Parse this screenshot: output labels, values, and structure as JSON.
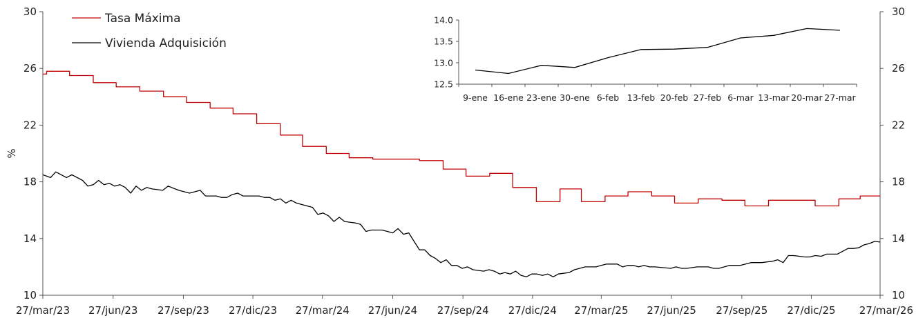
{
  "chart_data": [
    {
      "type": "line",
      "title": "",
      "xlabel": "",
      "ylabel": "%",
      "ylim": [
        10,
        30
      ],
      "y_ticks": [
        10,
        14,
        18,
        22,
        26,
        30
      ],
      "secondary_y_ticks": [
        10,
        14,
        18,
        22,
        26,
        30
      ],
      "x_range": [
        "2023-03-27",
        "2026-03-27"
      ],
      "x_ticks": [
        {
          "date": "2023-03-27",
          "label": "27/mar/23"
        },
        {
          "date": "2023-06-27",
          "label": "27/jun/23"
        },
        {
          "date": "2023-09-27",
          "label": "27/sep/23"
        },
        {
          "date": "2023-12-27",
          "label": "27/dic/23"
        },
        {
          "date": "2024-03-27",
          "label": "27/mar/24"
        },
        {
          "date": "2024-06-27",
          "label": "27/jun/24"
        },
        {
          "date": "2024-09-27",
          "label": "27/sep/24"
        },
        {
          "date": "2024-12-27",
          "label": "27/dic/24"
        },
        {
          "date": "2025-03-27",
          "label": "27/mar/25"
        },
        {
          "date": "2025-06-27",
          "label": "27/jun/25"
        },
        {
          "date": "2025-09-27",
          "label": "27/sep/25"
        },
        {
          "date": "2025-12-27",
          "label": "27/dic/25"
        },
        {
          "date": "2026-03-27",
          "label": "27/mar/26"
        }
      ],
      "legend_position": "top-left",
      "grid": false,
      "series": [
        {
          "name": "Tasa Máxima",
          "color": "#c00000",
          "shape": "step",
          "points": [
            [
              "2023-03-27",
              25.6
            ],
            [
              "2023-04-01",
              25.8
            ],
            [
              "2023-05-01",
              25.5
            ],
            [
              "2023-06-01",
              25.0
            ],
            [
              "2023-07-01",
              24.7
            ],
            [
              "2023-08-01",
              24.4
            ],
            [
              "2023-09-01",
              24.0
            ],
            [
              "2023-10-01",
              23.6
            ],
            [
              "2023-11-01",
              23.2
            ],
            [
              "2023-12-01",
              22.8
            ],
            [
              "2024-01-01",
              22.1
            ],
            [
              "2024-02-01",
              21.3
            ],
            [
              "2024-03-01",
              20.5
            ],
            [
              "2024-04-01",
              20.0
            ],
            [
              "2024-05-01",
              19.7
            ],
            [
              "2024-06-01",
              19.6
            ],
            [
              "2024-08-01",
              19.5
            ],
            [
              "2024-09-01",
              18.9
            ],
            [
              "2024-10-01",
              18.4
            ],
            [
              "2024-11-01",
              18.6
            ],
            [
              "2024-12-01",
              17.6
            ],
            [
              "2025-01-01",
              16.6
            ],
            [
              "2025-02-01",
              17.5
            ],
            [
              "2025-03-01",
              16.6
            ],
            [
              "2025-04-01",
              17.0
            ],
            [
              "2025-05-01",
              17.3
            ],
            [
              "2025-06-01",
              17.0
            ],
            [
              "2025-07-01",
              16.5
            ],
            [
              "2025-08-01",
              16.8
            ],
            [
              "2025-09-01",
              16.7
            ],
            [
              "2025-10-01",
              16.3
            ],
            [
              "2025-11-01",
              16.7
            ],
            [
              "2025-12-01",
              16.7
            ],
            [
              "2026-01-01",
              16.3
            ],
            [
              "2026-02-01",
              16.8
            ],
            [
              "2026-03-01",
              17.0
            ],
            [
              "2026-03-27",
              17.0
            ]
          ]
        },
        {
          "name": "Vivienda Adquisición",
          "color": "#000000",
          "shape": "line",
          "points": [
            [
              "2023-03-27",
              18.5
            ],
            [
              "2023-04-06",
              18.3
            ],
            [
              "2023-04-13",
              18.7
            ],
            [
              "2023-04-27",
              18.3
            ],
            [
              "2023-05-04",
              18.5
            ],
            [
              "2023-05-18",
              18.1
            ],
            [
              "2023-05-25",
              17.7
            ],
            [
              "2023-06-01",
              17.8
            ],
            [
              "2023-06-08",
              18.1
            ],
            [
              "2023-06-15",
              17.8
            ],
            [
              "2023-06-22",
              17.9
            ],
            [
              "2023-06-29",
              17.7
            ],
            [
              "2023-07-06",
              17.8
            ],
            [
              "2023-07-13",
              17.6
            ],
            [
              "2023-07-20",
              17.2
            ],
            [
              "2023-07-27",
              17.7
            ],
            [
              "2023-08-03",
              17.4
            ],
            [
              "2023-08-10",
              17.6
            ],
            [
              "2023-08-17",
              17.5
            ],
            [
              "2023-08-31",
              17.4
            ],
            [
              "2023-09-07",
              17.7
            ],
            [
              "2023-09-21",
              17.4
            ],
            [
              "2023-10-05",
              17.2
            ],
            [
              "2023-10-19",
              17.4
            ],
            [
              "2023-10-26",
              17.0
            ],
            [
              "2023-11-09",
              17.0
            ],
            [
              "2023-11-16",
              16.9
            ],
            [
              "2023-11-23",
              16.9
            ],
            [
              "2023-11-30",
              17.1
            ],
            [
              "2023-12-07",
              17.2
            ],
            [
              "2023-12-14",
              17.0
            ],
            [
              "2023-12-28",
              17.0
            ],
            [
              "2024-01-04",
              17.0
            ],
            [
              "2024-01-11",
              16.9
            ],
            [
              "2024-01-18",
              16.9
            ],
            [
              "2024-01-25",
              16.7
            ],
            [
              "2024-02-01",
              16.8
            ],
            [
              "2024-02-08",
              16.5
            ],
            [
              "2024-02-15",
              16.7
            ],
            [
              "2024-02-22",
              16.5
            ],
            [
              "2024-02-29",
              16.4
            ],
            [
              "2024-03-14",
              16.2
            ],
            [
              "2024-03-21",
              15.7
            ],
            [
              "2024-03-28",
              15.8
            ],
            [
              "2024-04-04",
              15.6
            ],
            [
              "2024-04-11",
              15.2
            ],
            [
              "2024-04-18",
              15.5
            ],
            [
              "2024-04-25",
              15.2
            ],
            [
              "2024-05-09",
              15.1
            ],
            [
              "2024-05-16",
              15.0
            ],
            [
              "2024-05-23",
              14.5
            ],
            [
              "2024-05-30",
              14.6
            ],
            [
              "2024-06-13",
              14.6
            ],
            [
              "2024-06-20",
              14.5
            ],
            [
              "2024-06-27",
              14.4
            ],
            [
              "2024-07-04",
              14.7
            ],
            [
              "2024-07-11",
              14.3
            ],
            [
              "2024-07-18",
              14.4
            ],
            [
              "2024-07-25",
              13.8
            ],
            [
              "2024-08-01",
              13.2
            ],
            [
              "2024-08-08",
              13.2
            ],
            [
              "2024-08-15",
              12.8
            ],
            [
              "2024-08-22",
              12.6
            ],
            [
              "2024-08-29",
              12.3
            ],
            [
              "2024-09-05",
              12.5
            ],
            [
              "2024-09-12",
              12.1
            ],
            [
              "2024-09-19",
              12.1
            ],
            [
              "2024-09-26",
              11.9
            ],
            [
              "2024-10-03",
              12.0
            ],
            [
              "2024-10-10",
              11.8
            ],
            [
              "2024-10-24",
              11.7
            ],
            [
              "2024-10-31",
              11.8
            ],
            [
              "2024-11-07",
              11.7
            ],
            [
              "2024-11-14",
              11.5
            ],
            [
              "2024-11-21",
              11.6
            ],
            [
              "2024-11-28",
              11.5
            ],
            [
              "2024-12-05",
              11.7
            ],
            [
              "2024-12-12",
              11.4
            ],
            [
              "2024-12-19",
              11.3
            ],
            [
              "2024-12-26",
              11.5
            ],
            [
              "2025-01-02",
              11.5
            ],
            [
              "2025-01-09",
              11.4
            ],
            [
              "2025-01-16",
              11.5
            ],
            [
              "2025-01-23",
              11.3
            ],
            [
              "2025-01-30",
              11.5
            ],
            [
              "2025-02-13",
              11.6
            ],
            [
              "2025-02-20",
              11.8
            ],
            [
              "2025-03-06",
              12.0
            ],
            [
              "2025-03-20",
              12.0
            ],
            [
              "2025-03-27",
              12.1
            ],
            [
              "2025-04-03",
              12.2
            ],
            [
              "2025-04-17",
              12.2
            ],
            [
              "2025-04-24",
              12.0
            ],
            [
              "2025-05-01",
              12.1
            ],
            [
              "2025-05-08",
              12.1
            ],
            [
              "2025-05-15",
              12.0
            ],
            [
              "2025-05-22",
              12.1
            ],
            [
              "2025-05-29",
              12.0
            ],
            [
              "2025-06-05",
              12.0
            ],
            [
              "2025-06-26",
              11.9
            ],
            [
              "2025-07-03",
              12.0
            ],
            [
              "2025-07-10",
              11.9
            ],
            [
              "2025-07-17",
              11.9
            ],
            [
              "2025-07-31",
              12.0
            ],
            [
              "2025-08-14",
              12.0
            ],
            [
              "2025-08-21",
              11.9
            ],
            [
              "2025-08-28",
              11.9
            ],
            [
              "2025-09-04",
              12.0
            ],
            [
              "2025-09-11",
              12.1
            ],
            [
              "2025-09-25",
              12.1
            ],
            [
              "2025-10-02",
              12.2
            ],
            [
              "2025-10-09",
              12.3
            ],
            [
              "2025-10-23",
              12.3
            ],
            [
              "2025-11-06",
              12.4
            ],
            [
              "2025-11-13",
              12.5
            ],
            [
              "2025-11-20",
              12.3
            ],
            [
              "2025-11-27",
              12.8
            ],
            [
              "2025-12-04",
              12.8
            ],
            [
              "2025-12-18",
              12.7
            ],
            [
              "2025-12-25",
              12.7
            ],
            [
              "2026-01-01",
              12.8
            ],
            [
              "2026-01-09",
              12.75
            ],
            [
              "2026-01-16",
              12.9
            ],
            [
              "2026-01-23",
              12.9
            ],
            [
              "2026-01-30",
              12.9
            ],
            [
              "2026-02-06",
              13.1
            ],
            [
              "2026-02-13",
              13.3
            ],
            [
              "2026-02-20",
              13.3
            ],
            [
              "2026-02-27",
              13.35
            ],
            [
              "2026-03-06",
              13.55
            ],
            [
              "2026-03-13",
              13.65
            ],
            [
              "2026-03-20",
              13.8
            ],
            [
              "2026-03-27",
              13.75
            ]
          ]
        }
      ]
    },
    {
      "type": "line",
      "title": "",
      "xlabel": "",
      "ylabel": "",
      "ylim": [
        12.5,
        14.0
      ],
      "y_ticks": [
        "12.5",
        "13.0",
        "13.5",
        "14.0"
      ],
      "categories": [
        "9-ene",
        "16-ene",
        "23-ene",
        "30-ene",
        "6-feb",
        "13-feb",
        "20-feb",
        "27-feb",
        "6-mar",
        "13-mar",
        "20-mar",
        "27-mar"
      ],
      "grid": false,
      "series": [
        {
          "name": "Vivienda Adquisición",
          "color": "#000000",
          "values": [
            12.83,
            12.75,
            12.94,
            12.89,
            13.12,
            13.31,
            13.32,
            13.36,
            13.58,
            13.64,
            13.8,
            13.76
          ]
        }
      ]
    }
  ]
}
